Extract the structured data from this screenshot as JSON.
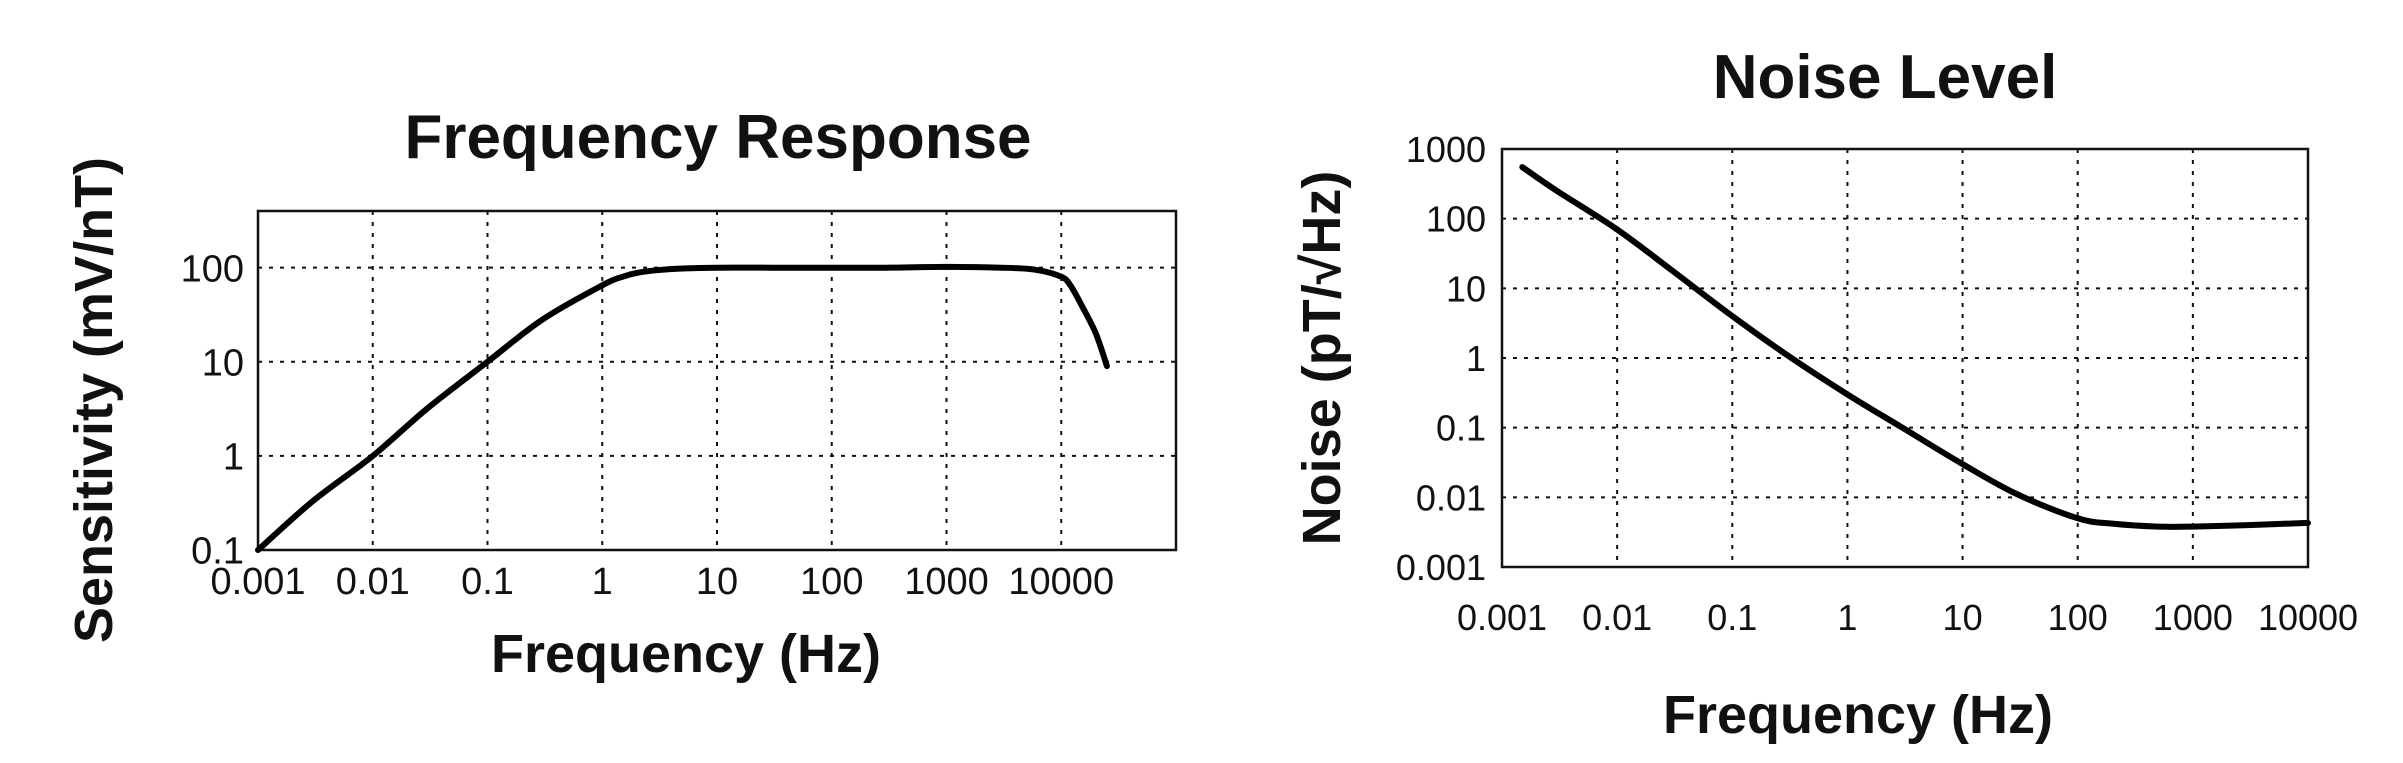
{
  "chart_data": [
    {
      "type": "line",
      "title": "Frequency Response",
      "xlabel": "Frequency (Hz)",
      "ylabel": "Sensitivity (mV/nT)",
      "x_scale": "log",
      "y_scale": "log",
      "xlim": [
        0.001,
        100000
      ],
      "ylim": [
        0.1,
        400
      ],
      "x_ticks": [
        0.001,
        0.01,
        0.1,
        1,
        10,
        100,
        1000,
        10000
      ],
      "x_tick_labels": [
        "0.001",
        "0.01",
        "0.1",
        "1",
        "10",
        "100",
        "1000",
        "10000"
      ],
      "y_ticks": [
        0.1,
        1,
        10,
        100
      ],
      "y_tick_labels": [
        "0.1",
        "1",
        "10",
        "100"
      ],
      "grid": true,
      "series": [
        {
          "x": [
            0.001,
            0.003,
            0.01,
            0.03,
            0.1,
            0.3,
            1,
            1.5,
            2,
            3,
            5,
            10,
            30,
            100,
            300,
            1000,
            3000,
            6000,
            10000,
            12000,
            15000,
            20000,
            25000
          ],
          "y": [
            0.1,
            0.33,
            1,
            3.2,
            10,
            28,
            65,
            80,
            88,
            94,
            98,
            100,
            100,
            100,
            100,
            102,
            100,
            95,
            80,
            65,
            40,
            20,
            9
          ]
        }
      ]
    },
    {
      "type": "line",
      "title": "Noise Level",
      "xlabel": "Frequency (Hz)",
      "ylabel": "Noise (pT/√Hz)",
      "x_scale": "log",
      "y_scale": "log",
      "xlim": [
        0.001,
        10000
      ],
      "ylim": [
        0.001,
        1000
      ],
      "x_ticks": [
        0.001,
        0.01,
        0.1,
        1,
        10,
        100,
        1000,
        10000
      ],
      "x_tick_labels": [
        "0.001",
        "0.01",
        "0.1",
        "1",
        "10",
        "100",
        "1000",
        "10000"
      ],
      "y_ticks": [
        0.001,
        0.01,
        0.1,
        1,
        10,
        100,
        1000
      ],
      "y_tick_labels": [
        "0.001",
        "0.01",
        "0.1",
        "1",
        "10",
        "100",
        "1000"
      ],
      "grid": true,
      "series": [
        {
          "x": [
            0.0015,
            0.003,
            0.01,
            0.03,
            0.1,
            0.3,
            1,
            3,
            10,
            30,
            100,
            200,
            500,
            1000,
            3000,
            10000
          ],
          "y": [
            550,
            250,
            70,
            18,
            4,
            1.1,
            0.3,
            0.1,
            0.03,
            0.011,
            0.005,
            0.0042,
            0.0038,
            0.0038,
            0.004,
            0.0043
          ]
        }
      ]
    }
  ]
}
